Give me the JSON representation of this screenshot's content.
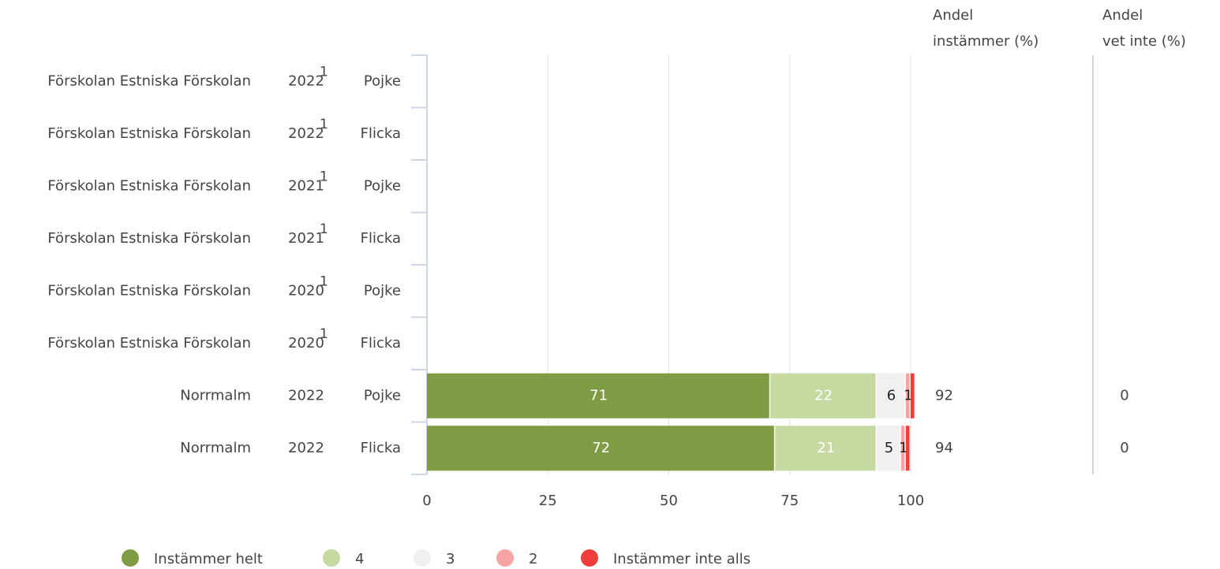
{
  "chart_data": {
    "type": "stacked-bar-horizontal",
    "categories": [
      {
        "name": "Förskolan Estniska Förskolan",
        "year": "2022",
        "note": "1",
        "group": "Pojke"
      },
      {
        "name": "Förskolan Estniska Förskolan",
        "year": "2022",
        "note": "1",
        "group": "Flicka"
      },
      {
        "name": "Förskolan Estniska Förskolan",
        "year": "2021",
        "note": "1",
        "group": "Pojke"
      },
      {
        "name": "Förskolan Estniska Förskolan",
        "year": "2021",
        "note": "1",
        "group": "Flicka"
      },
      {
        "name": "Förskolan Estniska Förskolan",
        "year": "2020",
        "note": "1",
        "group": "Pojke"
      },
      {
        "name": "Förskolan Estniska Förskolan",
        "year": "2020",
        "note": "1",
        "group": "Flicka"
      },
      {
        "name": "Norrmalm",
        "year": "2022",
        "note": null,
        "group": "Pojke"
      },
      {
        "name": "Norrmalm",
        "year": "2022",
        "note": null,
        "group": "Flicka"
      }
    ],
    "series": [
      {
        "name": "Instämmer helt",
        "color": "#7f9c44",
        "label_color": "#ffffff",
        "show_labels": true,
        "values": [
          null,
          null,
          null,
          null,
          null,
          null,
          71,
          72
        ]
      },
      {
        "name": "4",
        "color": "#c5d9a0",
        "label_color": "#ffffff",
        "show_labels": true,
        "values": [
          null,
          null,
          null,
          null,
          null,
          null,
          22,
          21
        ]
      },
      {
        "name": "3",
        "color": "#f0f0f0",
        "label_color": "#222222",
        "show_labels": true,
        "values": [
          null,
          null,
          null,
          null,
          null,
          null,
          6,
          5
        ]
      },
      {
        "name": "2",
        "color": "#f7a3a3",
        "label_color": "#222222",
        "show_labels": true,
        "values": [
          null,
          null,
          null,
          null,
          null,
          null,
          1,
          1
        ]
      },
      {
        "name": "Instämmer inte alls",
        "color": "#f03e3e",
        "label_color": "#222222",
        "show_labels": false,
        "values": [
          null,
          null,
          null,
          null,
          null,
          null,
          1,
          1
        ]
      }
    ],
    "columns": [
      {
        "header": [
          "Andel",
          "instämmer (%)"
        ],
        "values": [
          null,
          null,
          null,
          null,
          null,
          null,
          92,
          94
        ]
      },
      {
        "header": [
          "Andel",
          "vet inte (%)"
        ],
        "values": [
          null,
          null,
          null,
          null,
          null,
          null,
          0,
          0
        ]
      }
    ],
    "xlim": [
      0,
      100
    ],
    "xticks": [
      0,
      25,
      50,
      75,
      100
    ],
    "grid": true
  }
}
